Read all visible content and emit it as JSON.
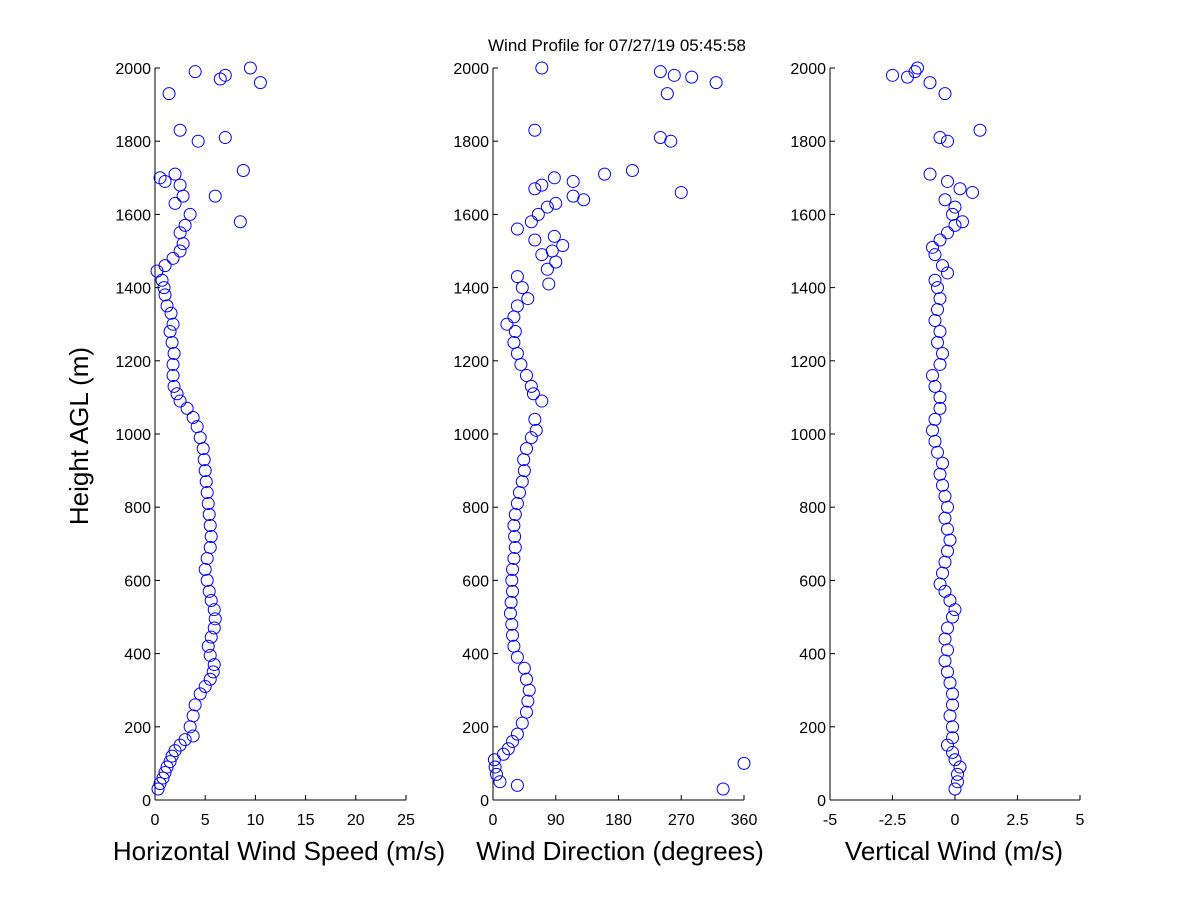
{
  "title": "Wind Profile for  07/27/19 05:45:58",
  "marker_color": "#0000ff",
  "chart_data": [
    {
      "type": "scatter",
      "xlabel": "Horizontal Wind Speed (m/s)",
      "ylabel": "Height AGL (m)",
      "xlim": [
        0,
        25
      ],
      "ylim": [
        0,
        2000
      ],
      "xticks": [
        0,
        5,
        10,
        15,
        20,
        25
      ],
      "xtick_labels": [
        "0",
        "5",
        "10",
        "15",
        "20",
        "25"
      ],
      "yticks": [
        0,
        200,
        400,
        600,
        800,
        1000,
        1200,
        1400,
        1600,
        1800,
        2000
      ],
      "ytick_labels": [
        "0",
        "200",
        "400",
        "600",
        "800",
        "1000",
        "1200",
        "1400",
        "1600",
        "1800",
        "2000"
      ],
      "points": [
        [
          0.3,
          30
        ],
        [
          0.5,
          45
        ],
        [
          0.8,
          60
        ],
        [
          1.0,
          75
        ],
        [
          1.2,
          90
        ],
        [
          1.5,
          105
        ],
        [
          1.7,
          120
        ],
        [
          2.0,
          135
        ],
        [
          2.5,
          150
        ],
        [
          3.0,
          165
        ],
        [
          3.8,
          175
        ],
        [
          3.5,
          200
        ],
        [
          3.8,
          230
        ],
        [
          4.0,
          260
        ],
        [
          4.5,
          290
        ],
        [
          5.0,
          310
        ],
        [
          5.5,
          330
        ],
        [
          5.8,
          350
        ],
        [
          5.9,
          370
        ],
        [
          5.5,
          395
        ],
        [
          5.3,
          420
        ],
        [
          5.6,
          445
        ],
        [
          5.9,
          470
        ],
        [
          6.0,
          495
        ],
        [
          5.9,
          520
        ],
        [
          5.6,
          545
        ],
        [
          5.4,
          570
        ],
        [
          5.2,
          600
        ],
        [
          5.0,
          630
        ],
        [
          5.2,
          660
        ],
        [
          5.5,
          690
        ],
        [
          5.6,
          720
        ],
        [
          5.5,
          750
        ],
        [
          5.4,
          780
        ],
        [
          5.3,
          810
        ],
        [
          5.2,
          840
        ],
        [
          5.1,
          870
        ],
        [
          5.0,
          900
        ],
        [
          4.9,
          930
        ],
        [
          4.8,
          960
        ],
        [
          4.5,
          990
        ],
        [
          4.2,
          1020
        ],
        [
          3.8,
          1045
        ],
        [
          3.2,
          1070
        ],
        [
          2.5,
          1090
        ],
        [
          2.2,
          1110
        ],
        [
          1.9,
          1130
        ],
        [
          1.8,
          1160
        ],
        [
          1.8,
          1190
        ],
        [
          1.9,
          1220
        ],
        [
          1.7,
          1250
        ],
        [
          1.5,
          1280
        ],
        [
          1.8,
          1300
        ],
        [
          1.6,
          1330
        ],
        [
          1.2,
          1350
        ],
        [
          1.0,
          1380
        ],
        [
          0.9,
          1400
        ],
        [
          0.7,
          1420
        ],
        [
          0.2,
          1445
        ],
        [
          1.0,
          1460
        ],
        [
          1.8,
          1480
        ],
        [
          2.5,
          1500
        ],
        [
          2.8,
          1520
        ],
        [
          2.5,
          1550
        ],
        [
          3.0,
          1570
        ],
        [
          3.5,
          1600
        ],
        [
          2.0,
          1630
        ],
        [
          2.8,
          1650
        ],
        [
          2.5,
          1680
        ],
        [
          1.0,
          1690
        ],
        [
          0.5,
          1700
        ],
        [
          2.0,
          1710
        ],
        [
          8.5,
          1580
        ],
        [
          8.8,
          1720
        ],
        [
          6.0,
          1650
        ],
        [
          2.5,
          1830
        ],
        [
          4.3,
          1800
        ],
        [
          7.0,
          1810
        ],
        [
          1.4,
          1930
        ],
        [
          4.0,
          1990
        ],
        [
          6.5,
          1970
        ],
        [
          7.0,
          1980
        ],
        [
          9.5,
          2000
        ],
        [
          10.5,
          1960
        ]
      ]
    },
    {
      "type": "scatter",
      "xlabel": "Wind Direction (degrees)",
      "xlim": [
        0,
        360
      ],
      "ylim": [
        0,
        2000
      ],
      "xticks": [
        0,
        90,
        180,
        270,
        360
      ],
      "xtick_labels": [
        "0",
        "90",
        "180",
        "270",
        "360"
      ],
      "yticks": [
        0,
        200,
        400,
        600,
        800,
        1000,
        1200,
        1400,
        1600,
        1800,
        2000
      ],
      "ytick_labels": [
        "0",
        "200",
        "400",
        "600",
        "800",
        "1000",
        "1200",
        "1400",
        "1600",
        "1800",
        "2000"
      ],
      "points": [
        [
          35,
          40
        ],
        [
          10,
          50
        ],
        [
          5,
          70
        ],
        [
          3,
          90
        ],
        [
          2,
          110
        ],
        [
          15,
          125
        ],
        [
          22,
          140
        ],
        [
          28,
          160
        ],
        [
          35,
          180
        ],
        [
          42,
          210
        ],
        [
          48,
          240
        ],
        [
          50,
          270
        ],
        [
          52,
          300
        ],
        [
          48,
          330
        ],
        [
          45,
          360
        ],
        [
          35,
          390
        ],
        [
          30,
          420
        ],
        [
          28,
          450
        ],
        [
          27,
          480
        ],
        [
          25,
          510
        ],
        [
          26,
          540
        ],
        [
          28,
          570
        ],
        [
          27,
          600
        ],
        [
          28,
          630
        ],
        [
          30,
          660
        ],
        [
          32,
          690
        ],
        [
          31,
          720
        ],
        [
          30,
          750
        ],
        [
          32,
          780
        ],
        [
          35,
          810
        ],
        [
          38,
          840
        ],
        [
          42,
          870
        ],
        [
          45,
          900
        ],
        [
          44,
          930
        ],
        [
          48,
          960
        ],
        [
          55,
          990
        ],
        [
          62,
          1010
        ],
        [
          60,
          1040
        ],
        [
          70,
          1090
        ],
        [
          58,
          1110
        ],
        [
          55,
          1130
        ],
        [
          48,
          1160
        ],
        [
          40,
          1190
        ],
        [
          35,
          1220
        ],
        [
          30,
          1250
        ],
        [
          32,
          1280
        ],
        [
          20,
          1300
        ],
        [
          30,
          1320
        ],
        [
          35,
          1350
        ],
        [
          50,
          1370
        ],
        [
          42,
          1400
        ],
        [
          80,
          1410
        ],
        [
          35,
          1430
        ],
        [
          78,
          1450
        ],
        [
          90,
          1470
        ],
        [
          70,
          1490
        ],
        [
          85,
          1500
        ],
        [
          100,
          1515
        ],
        [
          60,
          1530
        ],
        [
          88,
          1540
        ],
        [
          35,
          1560
        ],
        [
          55,
          1580
        ],
        [
          65,
          1600
        ],
        [
          78,
          1620
        ],
        [
          90,
          1630
        ],
        [
          130,
          1640
        ],
        [
          115,
          1650
        ],
        [
          60,
          1670
        ],
        [
          70,
          1680
        ],
        [
          115,
          1690
        ],
        [
          88,
          1700
        ],
        [
          160,
          1710
        ],
        [
          200,
          1720
        ],
        [
          270,
          1660
        ],
        [
          240,
          1810
        ],
        [
          255,
          1800
        ],
        [
          60,
          1830
        ],
        [
          250,
          1930
        ],
        [
          320,
          1960
        ],
        [
          285,
          1975
        ],
        [
          260,
          1980
        ],
        [
          240,
          1990
        ],
        [
          70,
          2000
        ],
        [
          330,
          30
        ],
        [
          360,
          100
        ]
      ]
    },
    {
      "type": "scatter",
      "xlabel": "Vertical Wind (m/s)",
      "xlim": [
        -5,
        5
      ],
      "ylim": [
        0,
        2000
      ],
      "xticks": [
        -5,
        -2.5,
        0,
        2.5,
        5
      ],
      "xtick_labels": [
        "-5",
        "-2.5",
        "0",
        "2.5",
        "5"
      ],
      "yticks": [
        0,
        200,
        400,
        600,
        800,
        1000,
        1200,
        1400,
        1600,
        1800,
        2000
      ],
      "ytick_labels": [
        "0",
        "200",
        "400",
        "600",
        "800",
        "1000",
        "1200",
        "1400",
        "1600",
        "1800",
        "2000"
      ],
      "points": [
        [
          0,
          30
        ],
        [
          0.1,
          50
        ],
        [
          0.1,
          70
        ],
        [
          0.2,
          90
        ],
        [
          0,
          110
        ],
        [
          -0.1,
          130
        ],
        [
          -0.3,
          150
        ],
        [
          -0.1,
          170
        ],
        [
          -0.1,
          200
        ],
        [
          -0.2,
          230
        ],
        [
          -0.1,
          260
        ],
        [
          -0.1,
          290
        ],
        [
          -0.2,
          320
        ],
        [
          -0.3,
          350
        ],
        [
          -0.4,
          380
        ],
        [
          -0.3,
          410
        ],
        [
          -0.4,
          440
        ],
        [
          -0.3,
          470
        ],
        [
          -0.1,
          500
        ],
        [
          0,
          520
        ],
        [
          -0.2,
          545
        ],
        [
          -0.4,
          570
        ],
        [
          -0.6,
          590
        ],
        [
          -0.5,
          620
        ],
        [
          -0.4,
          650
        ],
        [
          -0.3,
          680
        ],
        [
          -0.2,
          710
        ],
        [
          -0.3,
          740
        ],
        [
          -0.4,
          770
        ],
        [
          -0.3,
          800
        ],
        [
          -0.4,
          830
        ],
        [
          -0.5,
          860
        ],
        [
          -0.6,
          890
        ],
        [
          -0.5,
          920
        ],
        [
          -0.7,
          950
        ],
        [
          -0.8,
          980
        ],
        [
          -0.9,
          1010
        ],
        [
          -0.8,
          1040
        ],
        [
          -0.6,
          1070
        ],
        [
          -0.6,
          1100
        ],
        [
          -0.8,
          1130
        ],
        [
          -0.9,
          1160
        ],
        [
          -0.6,
          1190
        ],
        [
          -0.5,
          1220
        ],
        [
          -0.7,
          1250
        ],
        [
          -0.6,
          1280
        ],
        [
          -0.8,
          1310
        ],
        [
          -0.7,
          1340
        ],
        [
          -0.6,
          1370
        ],
        [
          -0.7,
          1400
        ],
        [
          -0.8,
          1420
        ],
        [
          -0.3,
          1440
        ],
        [
          -0.5,
          1460
        ],
        [
          -0.8,
          1490
        ],
        [
          -0.9,
          1510
        ],
        [
          -0.6,
          1530
        ],
        [
          -0.3,
          1550
        ],
        [
          0,
          1570
        ],
        [
          0.3,
          1580
        ],
        [
          -0.1,
          1600
        ],
        [
          0,
          1620
        ],
        [
          -0.4,
          1640
        ],
        [
          0.2,
          1670
        ],
        [
          0.7,
          1660
        ],
        [
          -0.3,
          1690
        ],
        [
          -1.0,
          1710
        ],
        [
          -0.6,
          1810
        ],
        [
          -0.3,
          1800
        ],
        [
          1.0,
          1830
        ],
        [
          -0.4,
          1930
        ],
        [
          -1.0,
          1960
        ],
        [
          -2.5,
          1980
        ],
        [
          -1.9,
          1975
        ],
        [
          -1.6,
          1990
        ],
        [
          -1.5,
          2000
        ]
      ]
    }
  ]
}
